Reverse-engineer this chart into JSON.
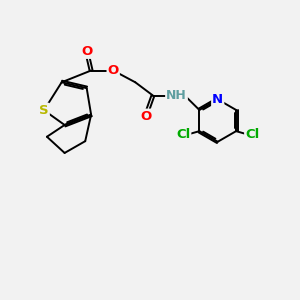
{
  "background_color": "#f2f2f2",
  "atom_colors": {
    "S": "#b8b800",
    "O": "#ff0000",
    "N": "#0000ff",
    "H": "#5f9ea0",
    "Cl": "#00aa00",
    "C": "#000000"
  },
  "bond_color": "#000000",
  "bond_width": 1.4,
  "font_size_atoms": 9.5,
  "fig_width": 3.0,
  "fig_height": 3.0,
  "dpi": 100,
  "xlim": [
    0,
    10
  ],
  "ylim": [
    0,
    10
  ]
}
